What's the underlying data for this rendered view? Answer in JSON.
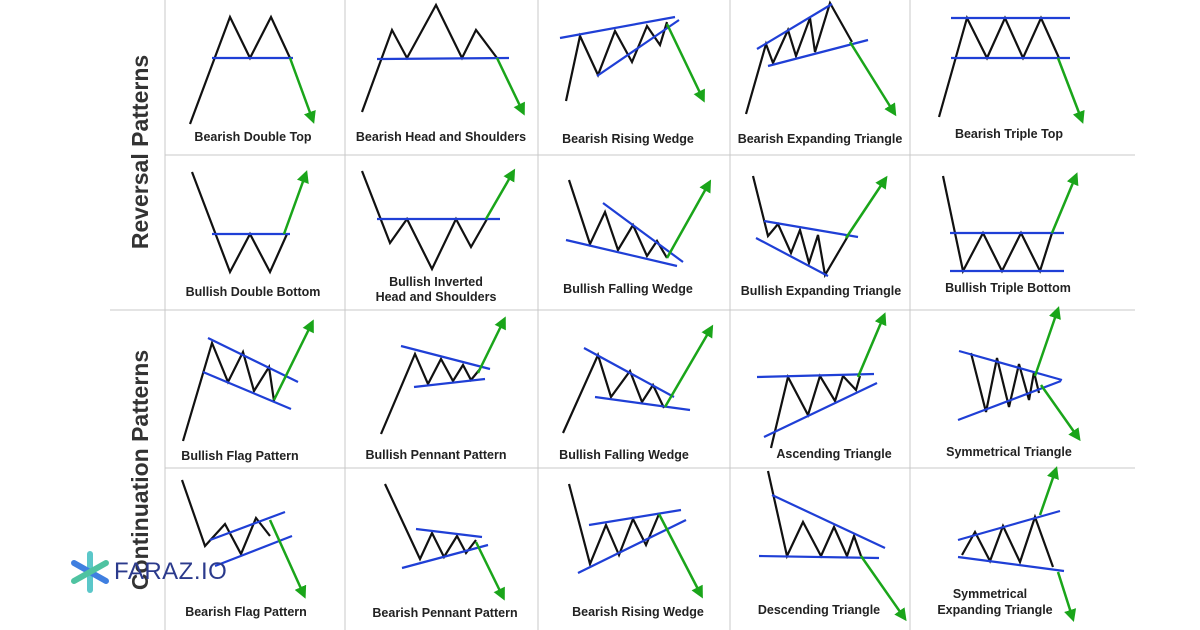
{
  "sections": {
    "reversal": "Reversal Patterns",
    "continuation": "Continuation Patterns"
  },
  "patterns": [
    {
      "label": "Bearish Double Top",
      "direction": "down"
    },
    {
      "label": "Bearish Head and Shoulders",
      "direction": "down"
    },
    {
      "label": "Bearish Rising Wedge",
      "direction": "down"
    },
    {
      "label": "Bearish Expanding Triangle",
      "direction": "down"
    },
    {
      "label": "Bearish Triple Top",
      "direction": "down"
    },
    {
      "label": "Bullish Double Bottom",
      "direction": "up"
    },
    {
      "label": "Bullish Inverted Head and Shoulders",
      "direction": "up"
    },
    {
      "label": "Bullish Falling Wedge",
      "direction": "up"
    },
    {
      "label": "Bullish Expanding Triangle",
      "direction": "up"
    },
    {
      "label": "Bullish Triple Bottom",
      "direction": "up"
    },
    {
      "label": "Bullish Flag Pattern",
      "direction": "up"
    },
    {
      "label": "Bullish Pennant Pattern",
      "direction": "up"
    },
    {
      "label": "Bullish Falling Wedge",
      "direction": "up"
    },
    {
      "label": "Ascending Triangle",
      "direction": "up"
    },
    {
      "label": "Symmetrical Triangle",
      "direction": "both"
    },
    {
      "label": "Bearish Flag Pattern",
      "direction": "down"
    },
    {
      "label": "Bearish Pennant Pattern",
      "direction": "down"
    },
    {
      "label": "Bearish Rising Wedge",
      "direction": "down"
    },
    {
      "label": "Descending Triangle",
      "direction": "down"
    },
    {
      "label": "Symmetrical Expanding Triangle",
      "direction": "both"
    }
  ],
  "logo": {
    "text": "FARAZ.IO"
  },
  "colors": {
    "price": "#111111",
    "trendline": "#1f3fd6",
    "breakout": "#1aa51a",
    "grid": "#c8c8c8"
  }
}
